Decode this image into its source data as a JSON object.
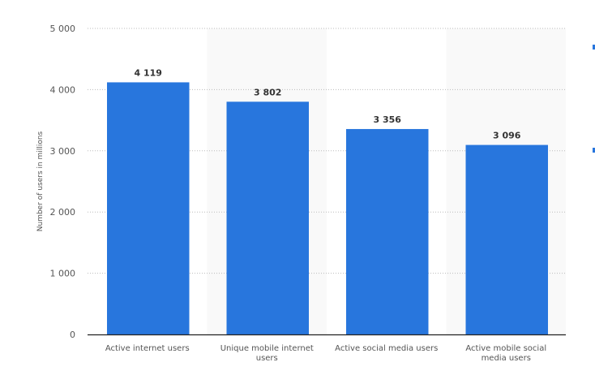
{
  "chart_data": {
    "type": "bar",
    "categories": [
      "Active internet users",
      "Unique mobile internet users",
      "Active social media users",
      "Active mobile social media users"
    ],
    "category_label_lines": [
      [
        "Active internet users"
      ],
      [
        "Unique mobile internet",
        "users"
      ],
      [
        "Active social media users"
      ],
      [
        "Active mobile social",
        "media users"
      ]
    ],
    "values": [
      4119,
      3802,
      3356,
      3096
    ],
    "data_labels": [
      "4 119",
      "3 802",
      "3 356",
      "3 096"
    ],
    "ylabel": "Number of users in millions",
    "xlabel": "",
    "ylim": [
      0,
      5000
    ],
    "yticks": [
      0,
      1000,
      2000,
      3000,
      4000,
      5000
    ],
    "ytick_labels": [
      "0",
      "1 000",
      "2 000",
      "3 000",
      "4 000",
      "5 000"
    ],
    "grid": true,
    "bar_color": "#2876dd"
  }
}
